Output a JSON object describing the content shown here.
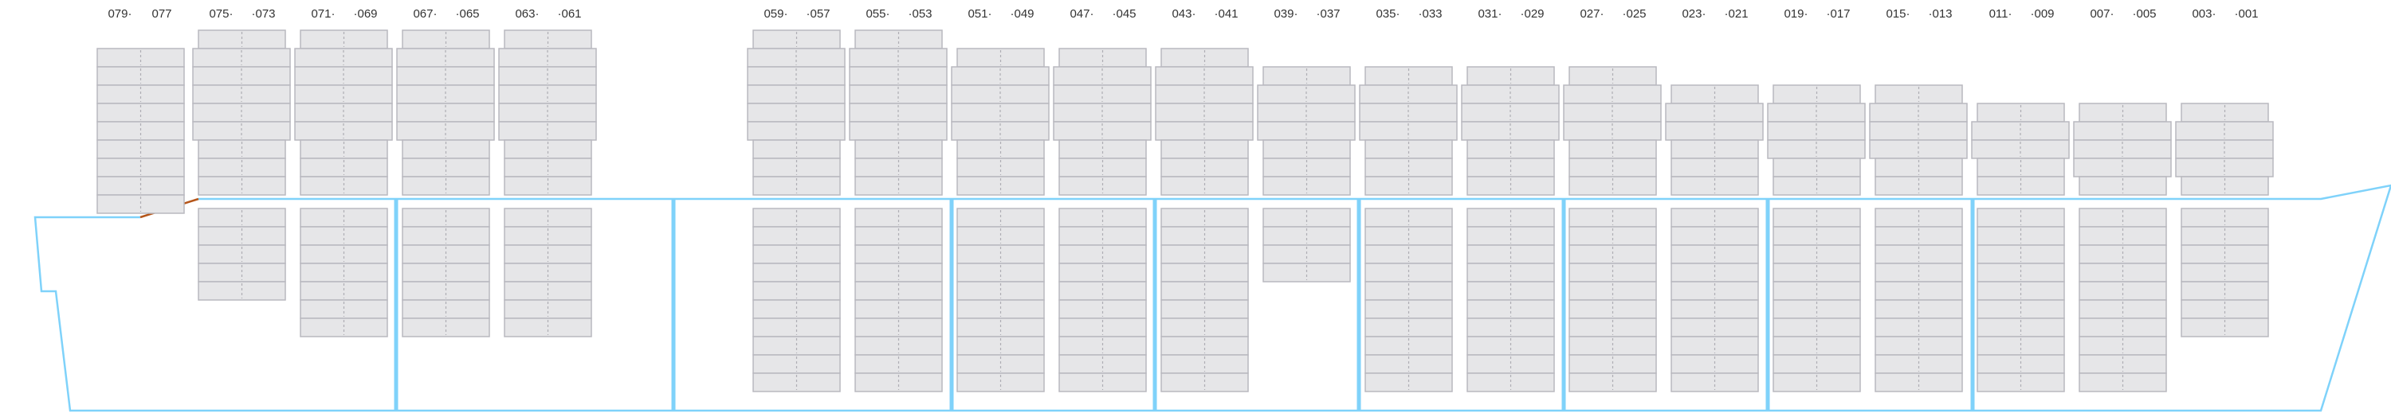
{
  "colors": {
    "slot_fill": "#e6e6e8",
    "slot_border": "#b9b8bf",
    "tier_divider": "#a9a8b0",
    "center_dash": "#aeadb4",
    "hull": "#7fd2fa",
    "lashing_line": "#b5561a",
    "label": "#333333"
  },
  "bays": [
    {
      "left_label": "079·",
      "right_label": "077",
      "deck_rows": [
        "n",
        "n",
        "n",
        "n",
        "n",
        "n",
        "n",
        "n",
        "n"
      ],
      "hold_rows": 0
    },
    {
      "left_label": "075·",
      "right_label": "·073",
      "deck_rows": [
        "n",
        "w",
        "w",
        "w",
        "w",
        "w",
        "n",
        "n",
        "n"
      ],
      "hold_rows": 5
    },
    {
      "left_label": "071·",
      "right_label": "·069",
      "deck_rows": [
        "n",
        "w",
        "w",
        "w",
        "w",
        "w",
        "n",
        "n",
        "n"
      ],
      "hold_rows": 7
    },
    {
      "left_label": "067·",
      "right_label": "·065",
      "deck_rows": [
        "n",
        "w",
        "w",
        "w",
        "w",
        "w",
        "n",
        "n",
        "n"
      ],
      "hold_rows": 7
    },
    {
      "left_label": "063·",
      "right_label": "·061",
      "deck_rows": [
        "n",
        "w",
        "w",
        "w",
        "w",
        "w",
        "n",
        "n",
        "n"
      ],
      "hold_rows": 7
    },
    {
      "left_label": "059·",
      "right_label": "·057",
      "deck_rows": [
        "n",
        "w",
        "w",
        "w",
        "w",
        "w",
        "n",
        "n",
        "n"
      ],
      "hold_rows": 10
    },
    {
      "left_label": "055·",
      "right_label": "·053",
      "deck_rows": [
        "n",
        "w",
        "w",
        "w",
        "w",
        "w",
        "n",
        "n",
        "n"
      ],
      "hold_rows": 10
    },
    {
      "left_label": "051·",
      "right_label": "·049",
      "deck_rows": [
        "n",
        "w",
        "w",
        "w",
        "w",
        "n",
        "n",
        "n"
      ],
      "hold_rows": 10
    },
    {
      "left_label": "047·",
      "right_label": "·045",
      "deck_rows": [
        "n",
        "w",
        "w",
        "w",
        "w",
        "n",
        "n",
        "n"
      ],
      "hold_rows": 10
    },
    {
      "left_label": "043·",
      "right_label": "·041",
      "deck_rows": [
        "n",
        "w",
        "w",
        "w",
        "w",
        "n",
        "n",
        "n"
      ],
      "hold_rows": 10
    },
    {
      "left_label": "039·",
      "right_label": "·037",
      "deck_rows": [
        "n",
        "w",
        "w",
        "w",
        "n",
        "n",
        "n"
      ],
      "hold_rows": 4
    },
    {
      "left_label": "035·",
      "right_label": "·033",
      "deck_rows": [
        "n",
        "w",
        "w",
        "w",
        "n",
        "n",
        "n"
      ],
      "hold_rows": 10
    },
    {
      "left_label": "031·",
      "right_label": "·029",
      "deck_rows": [
        "n",
        "w",
        "w",
        "w",
        "n",
        "n",
        "n"
      ],
      "hold_rows": 10
    },
    {
      "left_label": "027·",
      "right_label": "·025",
      "deck_rows": [
        "n",
        "w",
        "w",
        "w",
        "n",
        "n",
        "n"
      ],
      "hold_rows": 10
    },
    {
      "left_label": "023·",
      "right_label": "·021",
      "deck_rows": [
        "n",
        "w",
        "w",
        "n",
        "n",
        "n"
      ],
      "hold_rows": 10
    },
    {
      "left_label": "019·",
      "right_label": "·017",
      "deck_rows": [
        "n",
        "w",
        "w",
        "w",
        "n",
        "n"
      ],
      "hold_rows": 10
    },
    {
      "left_label": "015·",
      "right_label": "·013",
      "deck_rows": [
        "n",
        "w",
        "w",
        "w",
        "n",
        "n"
      ],
      "hold_rows": 10
    },
    {
      "left_label": "011·",
      "right_label": "·009",
      "deck_rows": [
        "n",
        "w",
        "w",
        "n",
        "n"
      ],
      "hold_rows": 10
    },
    {
      "left_label": "007·",
      "right_label": "·005",
      "deck_rows": [
        "n",
        "w",
        "w",
        "w",
        "n"
      ],
      "hold_rows": 10
    },
    {
      "left_label": "003·",
      "right_label": "·001",
      "deck_rows": [
        "n",
        "w",
        "w",
        "w",
        "n"
      ],
      "hold_rows": 7
    }
  ]
}
